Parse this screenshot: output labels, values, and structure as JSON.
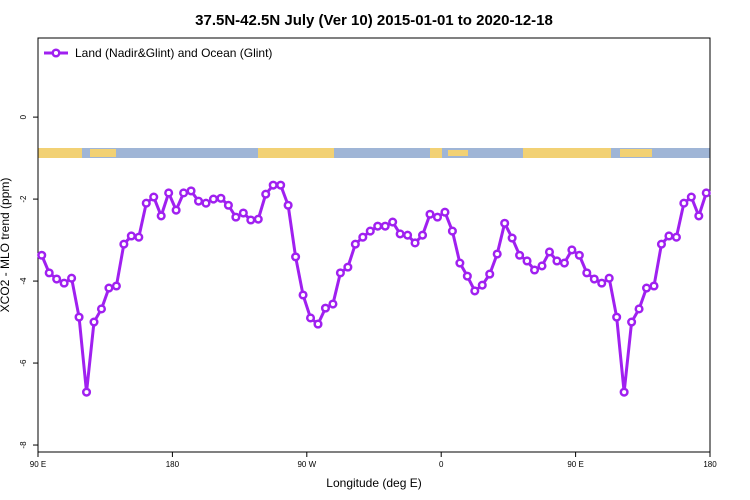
{
  "chart_data": {
    "type": "line",
    "title": "37.5N-42.5N July (Ver 10)   2015-01-01 to 2020-12-18",
    "xlabel": "Longitude (deg E)",
    "ylabel": "XCO2 - MLO trend (ppm)",
    "xlim": [
      90,
      540
    ],
    "ylim": [
      -8.17,
      1.93
    ],
    "xticks": [
      {
        "value": 90,
        "label": "90 E"
      },
      180,
      {
        "value": 270,
        "label": "90 W"
      },
      {
        "value": 360,
        "label": "0"
      },
      {
        "value": 450,
        "label": "90 E"
      },
      {
        "value": 540,
        "label": "180"
      }
    ],
    "yticks": [
      0,
      -2,
      -4,
      -6,
      -8
    ],
    "legend": "top-left",
    "x": [
      92.5,
      97.5,
      102.5,
      107.5,
      112.5,
      117.5,
      122.5,
      127.5,
      132.5,
      137.5,
      142.5,
      147.5,
      152.5,
      157.5,
      162.5,
      167.5,
      172.5,
      177.5,
      182.5,
      187.5,
      192.5,
      197.5,
      202.5,
      207.5,
      212.5,
      217.5,
      222.5,
      227.5,
      232.5,
      237.5,
      242.5,
      247.5,
      252.5,
      257.5,
      262.5,
      267.5,
      272.5,
      277.5,
      282.5,
      287.5,
      292.5,
      297.5,
      302.5,
      307.5,
      312.5,
      317.5,
      322.5,
      327.5,
      332.5,
      337.5,
      342.5,
      347.5,
      352.5,
      357.5,
      362.5,
      367.5,
      372.5,
      377.5,
      382.5,
      387.5,
      392.5,
      397.5,
      402.5,
      407.5,
      412.5,
      417.5,
      422.5,
      427.5,
      432.5,
      437.5,
      442.5,
      447.5,
      452.5,
      457.5,
      462.5,
      467.5,
      472.5,
      477.5,
      482.5,
      487.5,
      492.5,
      497.5,
      502.5,
      507.5,
      512.5,
      517.5,
      522.5,
      527.5,
      532.5,
      537.5
    ],
    "series": [
      {
        "name": "Land (Nadir&Glint) and Ocean (Glint)",
        "color": "#a020f0",
        "values": [
          -3.37,
          -3.8,
          -3.95,
          -4.05,
          -3.93,
          -4.88,
          -6.71,
          -5.0,
          -4.68,
          -4.17,
          -4.12,
          -3.1,
          -2.9,
          -2.93,
          -2.1,
          -1.95,
          -2.41,
          -1.85,
          -2.27,
          -1.85,
          -1.8,
          -2.05,
          -2.1,
          -2.0,
          -1.98,
          -2.15,
          -2.44,
          -2.34,
          -2.51,
          -2.49,
          -1.88,
          -1.66,
          -1.66,
          -2.15,
          -3.41,
          -4.34,
          -4.9,
          -5.05,
          -4.66,
          -4.56,
          -3.8,
          -3.66,
          -3.1,
          -2.93,
          -2.78,
          -2.66,
          -2.66,
          -2.56,
          -2.85,
          -2.88,
          -3.07,
          -2.88,
          -2.37,
          -2.44,
          -2.32,
          -2.78,
          -3.56,
          -3.88,
          -4.24,
          -4.1,
          -3.83,
          -3.34,
          -2.59,
          -2.95,
          -3.37,
          -3.51,
          -3.73,
          -3.63,
          -3.29,
          -3.51,
          -3.56,
          -3.24,
          -3.37,
          -3.8,
          -3.95,
          -4.05,
          -3.93,
          -4.88,
          -6.71,
          -5.0,
          -4.68,
          -4.17,
          -4.12,
          -3.1,
          -2.9,
          -2.93,
          -2.1,
          -1.95,
          -2.41,
          -1.85
        ]
      }
    ]
  }
}
